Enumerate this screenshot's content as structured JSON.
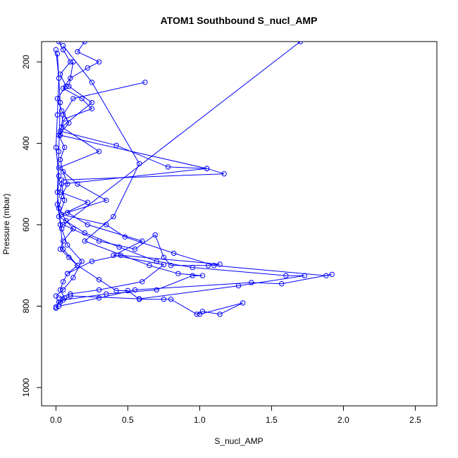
{
  "chart_data": {
    "type": "line",
    "title": "ATOM1 Southbound S_nucl_AMP",
    "xlabel": "S_nucl_AMP",
    "ylabel": "Pressure (mbar)",
    "xlim": [
      -0.1,
      2.65
    ],
    "ylim": [
      1045,
      150
    ],
    "y_reversed": true,
    "x_ticks": [
      0.0,
      0.5,
      1.0,
      1.5,
      2.0,
      2.5
    ],
    "x_tick_labels": [
      "0.0",
      "0.5",
      "1.0",
      "1.5",
      "2.0",
      "2.5"
    ],
    "y_ticks": [
      200,
      400,
      600,
      800,
      1000
    ],
    "y_tick_labels": [
      "200",
      "400",
      "600",
      "800",
      "1000"
    ],
    "grid": false,
    "color": "#0000ff",
    "marker": "open-circle",
    "series": [
      {
        "points": [
          [
            0.02,
            150
          ],
          [
            0.05,
            170
          ],
          [
            0.1,
            200
          ],
          [
            0.03,
            230
          ],
          [
            0.07,
            260
          ],
          [
            0.01,
            290
          ],
          [
            0.04,
            320
          ],
          [
            0.09,
            350
          ],
          [
            0.02,
            380
          ],
          [
            0.06,
            410
          ],
          [
            0.03,
            440
          ],
          [
            0.05,
            470
          ],
          [
            0.08,
            500
          ],
          [
            0.04,
            530
          ],
          [
            0.02,
            560
          ],
          [
            0.07,
            590
          ],
          [
            0.12,
            610
          ],
          [
            0.05,
            640
          ],
          [
            0.03,
            660
          ],
          [
            0.09,
            680
          ],
          [
            0.15,
            700
          ],
          [
            0.08,
            720
          ],
          [
            0.05,
            740
          ],
          [
            0.03,
            760
          ],
          [
            0.06,
            780
          ],
          [
            0.02,
            790
          ],
          [
            0.0,
            805
          ]
        ]
      },
      {
        "points": [
          [
            0.2,
            150
          ],
          [
            0.15,
            175
          ],
          [
            0.3,
            200
          ],
          [
            0.22,
            215
          ],
          [
            0.1,
            240
          ],
          [
            0.05,
            265
          ],
          [
            0.18,
            290
          ],
          [
            0.25,
            315
          ],
          [
            0.06,
            340
          ],
          [
            0.03,
            370
          ],
          [
            0.42,
            405
          ],
          [
            0.78,
            458
          ],
          [
            1.05,
            462
          ],
          [
            1.17,
            475
          ],
          [
            0.04,
            490
          ],
          [
            0.03,
            520
          ],
          [
            0.22,
            545
          ],
          [
            0.04,
            575
          ],
          [
            0.35,
            600
          ],
          [
            0.48,
            630
          ],
          [
            0.82,
            670
          ],
          [
            1.1,
            700
          ],
          [
            1.88,
            725
          ],
          [
            1.92,
            722
          ],
          [
            1.57,
            745
          ],
          [
            1.36,
            742
          ],
          [
            0.55,
            760
          ],
          [
            0.3,
            780
          ],
          [
            0.02,
            800
          ]
        ]
      },
      {
        "points": [
          [
            0.62,
            250
          ],
          [
            0.12,
            290
          ],
          [
            0.05,
            330
          ],
          [
            0.03,
            380
          ],
          [
            1.05,
            462
          ],
          [
            0.04,
            500
          ],
          [
            0.06,
            540
          ],
          [
            0.02,
            580
          ],
          [
            0.2,
            620
          ],
          [
            0.44,
            655
          ],
          [
            0.7,
            690
          ],
          [
            0.95,
            705
          ],
          [
            1.6,
            725
          ],
          [
            1.73,
            725
          ],
          [
            1.27,
            750
          ],
          [
            0.58,
            782
          ],
          [
            0.1,
            775
          ],
          [
            0.03,
            790
          ],
          [
            0.0,
            802
          ]
        ]
      },
      {
        "points": [
          [
            1.7,
            150
          ],
          [
            0.05,
            600
          ],
          [
            0.3,
            640
          ],
          [
            0.55,
            660
          ],
          [
            0.69,
            625
          ],
          [
            0.75,
            680
          ],
          [
            0.8,
            700
          ],
          [
            1.06,
            700
          ],
          [
            1.14,
            697
          ],
          [
            0.45,
            675
          ],
          [
            0.25,
            690
          ],
          [
            0.08,
            720
          ]
        ]
      },
      {
        "points": [
          [
            0.05,
            160
          ],
          [
            0.25,
            250
          ],
          [
            0.58,
            450
          ],
          [
            0.4,
            580
          ],
          [
            0.2,
            640
          ],
          [
            0.65,
            700
          ],
          [
            0.85,
            720
          ],
          [
            1.02,
            725
          ],
          [
            0.95,
            725
          ],
          [
            0.7,
            760
          ],
          [
            0.35,
            770
          ],
          [
            0.05,
            785
          ]
        ]
      },
      {
        "points": [
          [
            0.01,
            180
          ],
          [
            0.03,
            300
          ],
          [
            0.02,
            420
          ],
          [
            0.01,
            520
          ],
          [
            0.03,
            600
          ],
          [
            0.05,
            660
          ],
          [
            0.15,
            700
          ],
          [
            0.3,
            735
          ],
          [
            0.42,
            762
          ],
          [
            0.5,
            762
          ],
          [
            0.58,
            783
          ],
          [
            0.75,
            783
          ],
          [
            0.8,
            783
          ],
          [
            0.98,
            820
          ],
          [
            1.02,
            813
          ],
          [
            1.14,
            820
          ],
          [
            1.3,
            792
          ],
          [
            1.0,
            820
          ]
        ]
      },
      {
        "points": [
          [
            0.12,
            200
          ],
          [
            0.09,
            260
          ],
          [
            0.25,
            300
          ],
          [
            0.04,
            360
          ],
          [
            0.3,
            420
          ],
          [
            0.02,
            460
          ],
          [
            0.15,
            500
          ],
          [
            0.35,
            540
          ],
          [
            0.08,
            570
          ],
          [
            0.22,
            600
          ],
          [
            0.6,
            640
          ],
          [
            0.4,
            675
          ],
          [
            0.75,
            698
          ],
          [
            0.6,
            740
          ],
          [
            0.3,
            760
          ],
          [
            0.1,
            770
          ],
          [
            0.02,
            780
          ]
        ]
      },
      {
        "points": [
          [
            0.0,
            170
          ],
          [
            0.02,
            240
          ],
          [
            0.01,
            330
          ],
          [
            0.0,
            410
          ],
          [
            0.02,
            480
          ],
          [
            0.01,
            550
          ],
          [
            0.04,
            610
          ],
          [
            0.08,
            650
          ],
          [
            0.18,
            690
          ],
          [
            0.12,
            730
          ],
          [
            0.05,
            760
          ],
          [
            0.0,
            775
          ]
        ]
      }
    ]
  }
}
